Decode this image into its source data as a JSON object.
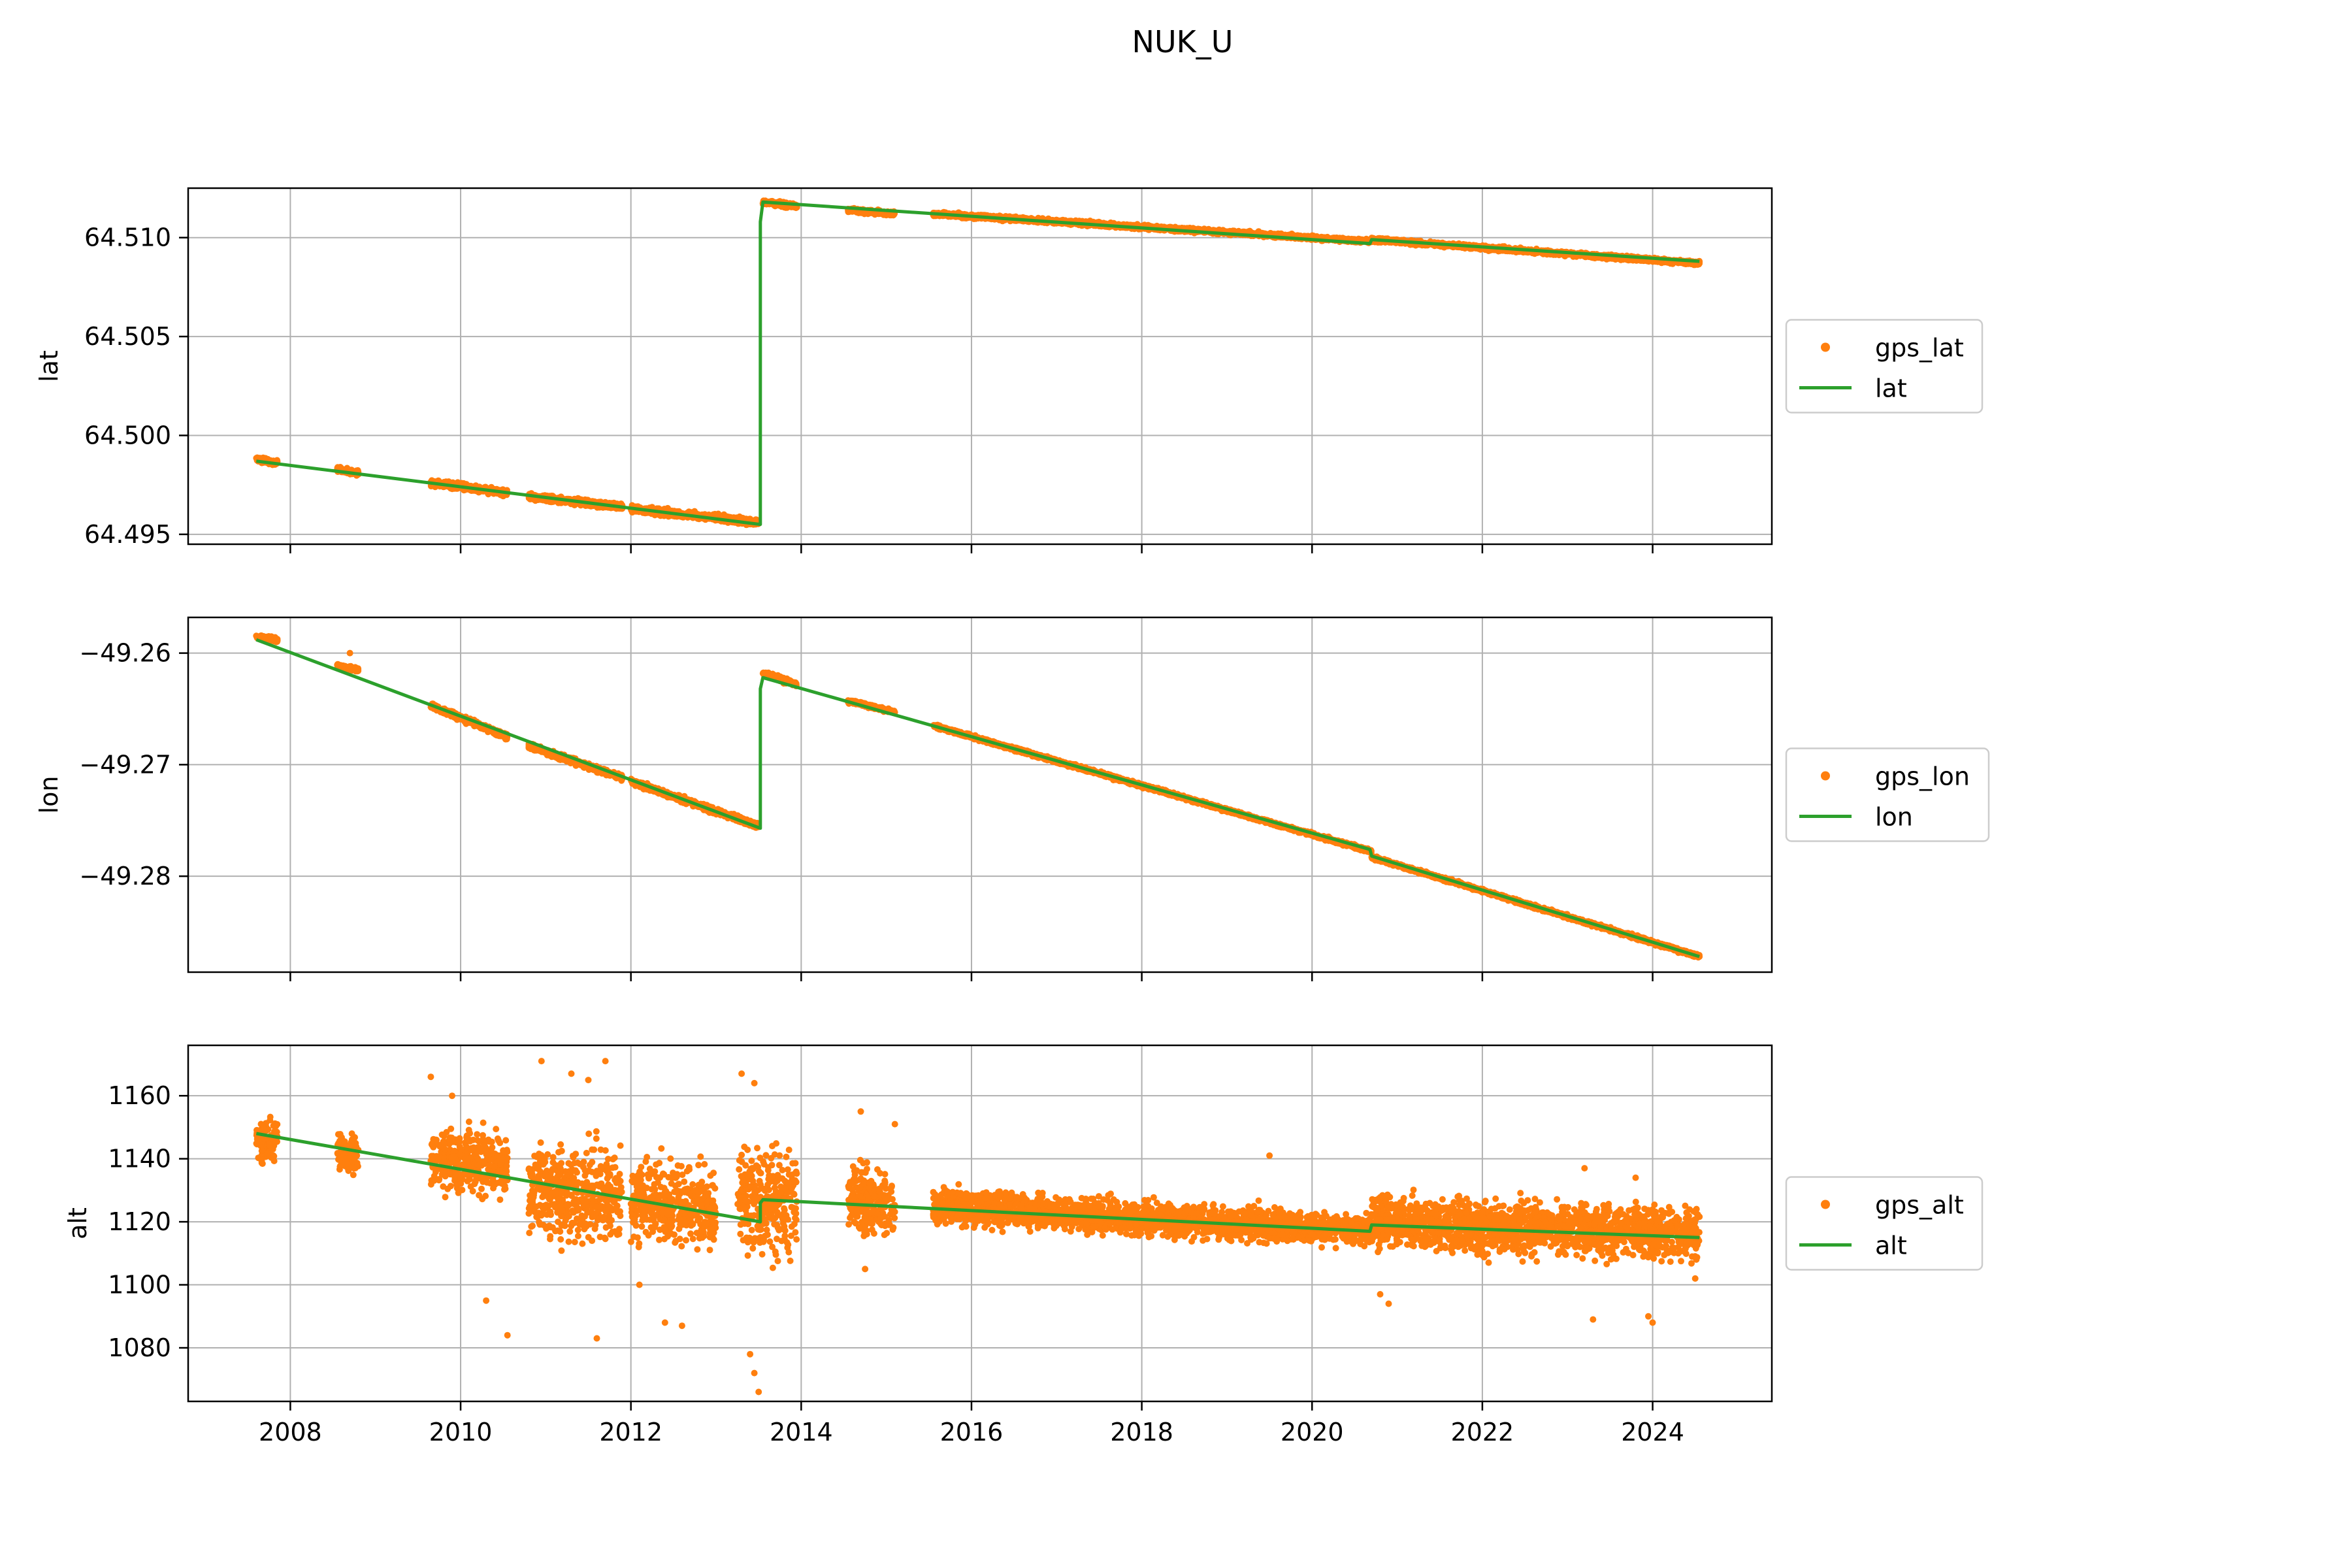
{
  "figure": {
    "title": "NUK_U"
  },
  "colors": {
    "gps_points": "#ff7f0e",
    "fit_line": "#2ca02c",
    "grid": "#b0b0b0",
    "axes": "#000000"
  },
  "chart_data": [
    {
      "type": "scatter",
      "ylabel": "lat",
      "xlim": [
        2006.8,
        2025.4
      ],
      "ylim": [
        64.4945,
        64.5125
      ],
      "x_ticks": [
        2008,
        2010,
        2012,
        2014,
        2016,
        2018,
        2020,
        2022,
        2024
      ],
      "x_tick_labels_visible": false,
      "y_ticks": [
        64.495,
        64.5,
        64.505,
        64.51
      ],
      "y_tick_labels": [
        "64.495",
        "64.500",
        "64.505",
        "64.510"
      ],
      "grid": true,
      "legend": {
        "placement": "outside-right",
        "entries": [
          "gps_lat",
          "lat"
        ]
      },
      "series": [
        {
          "name": "gps_lat",
          "kind": "points",
          "segments": [
            {
              "x": [
                2007.6,
                2007.85
              ],
              "y": [
                64.4988,
                64.4986
              ],
              "spread": 0.00012
            },
            {
              "x": [
                2008.55,
                2008.8
              ],
              "y": [
                64.4983,
                64.4981
              ],
              "spread": 0.00012
            },
            {
              "x": [
                2009.65,
                2010.55
              ],
              "y": [
                64.4976,
                64.4971
              ],
              "spread": 0.00015
            },
            {
              "x": [
                2010.8,
                2011.9
              ],
              "y": [
                64.4969,
                64.4964
              ],
              "spread": 0.00015
            },
            {
              "x": [
                2012.0,
                2013.5
              ],
              "y": [
                64.4963,
                64.4956
              ],
              "spread": 0.00015
            },
            {
              "x": [
                2013.55,
                2013.95
              ],
              "y": [
                64.5118,
                64.5116
              ],
              "spread": 0.00012
            },
            {
              "x": [
                2014.55,
                2015.1
              ],
              "y": [
                64.5114,
                64.5112
              ],
              "spread": 0.0001
            },
            {
              "x": [
                2015.55,
                2020.7
              ],
              "y": [
                64.5112,
                64.5098
              ],
              "spread": 0.0001
            },
            {
              "x": [
                2020.7,
                2024.55
              ],
              "y": [
                64.5099,
                64.5087
              ],
              "spread": 0.0001
            }
          ]
        },
        {
          "name": "lat",
          "kind": "line",
          "x": [
            2007.6,
            2013.52,
            2013.52,
            2013.55,
            2020.68,
            2020.7,
            2024.55
          ],
          "y": [
            64.4987,
            64.4955,
            64.5108,
            64.5118,
            64.5097,
            64.5099,
            64.5088
          ]
        }
      ]
    },
    {
      "type": "scatter",
      "ylabel": "lon",
      "xlim": [
        2006.8,
        2025.4
      ],
      "ylim": [
        -49.2886,
        -49.2568
      ],
      "x_ticks": [
        2008,
        2010,
        2012,
        2014,
        2016,
        2018,
        2020,
        2022,
        2024
      ],
      "x_tick_labels_visible": false,
      "y_ticks": [
        -49.28,
        -49.27,
        -49.26
      ],
      "y_tick_labels": [
        "−49.28",
        "−49.27",
        "−49.26"
      ],
      "grid": true,
      "legend": {
        "placement": "outside-right",
        "entries": [
          "gps_lon",
          "lon"
        ]
      },
      "series": [
        {
          "name": "gps_lon",
          "kind": "points",
          "segments": [
            {
              "x": [
                2007.6,
                2007.85
              ],
              "y": [
                -49.2585,
                -49.2588
              ],
              "spread": 0.0002
            },
            {
              "x": [
                2008.55,
                2008.8
              ],
              "y": [
                -49.2612,
                -49.2615
              ],
              "spread": 0.0002
            },
            {
              "x": [
                2009.65,
                2010.55
              ],
              "y": [
                -49.2647,
                -49.2675
              ],
              "spread": 0.00025
            },
            {
              "x": [
                2010.8,
                2011.9
              ],
              "y": [
                -49.2683,
                -49.2712
              ],
              "spread": 0.00025
            },
            {
              "x": [
                2012.0,
                2013.5
              ],
              "y": [
                -49.2715,
                -49.2755
              ],
              "spread": 0.00025
            },
            {
              "x": [
                2013.55,
                2013.95
              ],
              "y": [
                -49.2618,
                -49.2628
              ],
              "spread": 0.0002
            },
            {
              "x": [
                2014.55,
                2015.1
              ],
              "y": [
                -49.2643,
                -49.2653
              ],
              "spread": 0.00015
            },
            {
              "x": [
                2015.55,
                2020.7
              ],
              "y": [
                -49.2665,
                -49.2778
              ],
              "spread": 0.00015
            },
            {
              "x": [
                2020.7,
                2024.55
              ],
              "y": [
                -49.2783,
                -49.2872
              ],
              "spread": 0.00015
            }
          ],
          "outliers": [
            {
              "x": 2008.7,
              "y": -49.26
            }
          ]
        },
        {
          "name": "lon",
          "kind": "line",
          "x": [
            2007.6,
            2013.52,
            2013.52,
            2013.55,
            2020.68,
            2020.7,
            2024.55
          ],
          "y": [
            -49.2588,
            -49.2757,
            -49.2632,
            -49.2622,
            -49.2776,
            -49.2782,
            -49.2872
          ]
        }
      ]
    },
    {
      "type": "scatter",
      "ylabel": "alt",
      "xlim": [
        2006.8,
        2025.4
      ],
      "ylim": [
        1063,
        1176
      ],
      "x_ticks": [
        2008,
        2010,
        2012,
        2014,
        2016,
        2018,
        2020,
        2022,
        2024
      ],
      "x_tick_labels": [
        "2008",
        "2010",
        "2012",
        "2014",
        "2016",
        "2018",
        "2020",
        "2022",
        "2024"
      ],
      "x_tick_labels_visible": true,
      "y_ticks": [
        1080,
        1100,
        1120,
        1140,
        1160
      ],
      "y_tick_labels": [
        "1080",
        "1100",
        "1120",
        "1140",
        "1160"
      ],
      "grid": true,
      "legend": {
        "placement": "outside-right",
        "entries": [
          "gps_alt",
          "alt"
        ]
      },
      "series": [
        {
          "name": "gps_alt",
          "kind": "points",
          "segments": [
            {
              "x": [
                2007.6,
                2007.85
              ],
              "y": [
                1146,
                1146
              ],
              "spread": 6
            },
            {
              "x": [
                2008.55,
                2008.8
              ],
              "y": [
                1142,
                1142
              ],
              "spread": 6
            },
            {
              "x": [
                2009.65,
                2010.55
              ],
              "y": [
                1140,
                1138
              ],
              "spread": 9
            },
            {
              "x": [
                2010.8,
                2011.9
              ],
              "y": [
                1130,
                1128
              ],
              "spread": 14
            },
            {
              "x": [
                2012.0,
                2013.0
              ],
              "y": [
                1126,
                1124
              ],
              "spread": 12
            },
            {
              "x": [
                2013.25,
                2013.95
              ],
              "y": [
                1128,
                1126
              ],
              "spread": 16
            },
            {
              "x": [
                2014.55,
                2015.1
              ],
              "y": [
                1128,
                1125
              ],
              "spread": 10
            },
            {
              "x": [
                2015.55,
                2020.7
              ],
              "y": [
                1125,
                1117
              ],
              "spread": 5
            },
            {
              "x": [
                2020.7,
                2024.55
              ],
              "y": [
                1120,
                1116
              ],
              "spread": 8
            }
          ],
          "outliers": [
            {
              "x": 2009.65,
              "y": 1166
            },
            {
              "x": 2009.9,
              "y": 1160
            },
            {
              "x": 2010.3,
              "y": 1095
            },
            {
              "x": 2010.55,
              "y": 1084
            },
            {
              "x": 2010.95,
              "y": 1171
            },
            {
              "x": 2011.3,
              "y": 1167
            },
            {
              "x": 2011.5,
              "y": 1165
            },
            {
              "x": 2011.7,
              "y": 1171
            },
            {
              "x": 2011.6,
              "y": 1083
            },
            {
              "x": 2012.1,
              "y": 1100
            },
            {
              "x": 2012.4,
              "y": 1088
            },
            {
              "x": 2012.6,
              "y": 1087
            },
            {
              "x": 2013.3,
              "y": 1167
            },
            {
              "x": 2013.45,
              "y": 1164
            },
            {
              "x": 2013.4,
              "y": 1078
            },
            {
              "x": 2013.45,
              "y": 1072
            },
            {
              "x": 2013.5,
              "y": 1066
            },
            {
              "x": 2014.7,
              "y": 1155
            },
            {
              "x": 2014.75,
              "y": 1105
            },
            {
              "x": 2015.1,
              "y": 1151
            },
            {
              "x": 2019.5,
              "y": 1141
            },
            {
              "x": 2020.8,
              "y": 1097
            },
            {
              "x": 2020.9,
              "y": 1094
            },
            {
              "x": 2023.2,
              "y": 1137
            },
            {
              "x": 2023.3,
              "y": 1089
            },
            {
              "x": 2023.8,
              "y": 1134
            },
            {
              "x": 2023.95,
              "y": 1090
            },
            {
              "x": 2024.0,
              "y": 1088
            },
            {
              "x": 2024.5,
              "y": 1102
            }
          ]
        },
        {
          "name": "alt",
          "kind": "line",
          "x": [
            2007.6,
            2013.52,
            2013.52,
            2013.55,
            2020.68,
            2020.7,
            2024.55
          ],
          "y": [
            1148,
            1120,
            1126,
            1127,
            1117,
            1119,
            1115
          ]
        }
      ]
    }
  ]
}
